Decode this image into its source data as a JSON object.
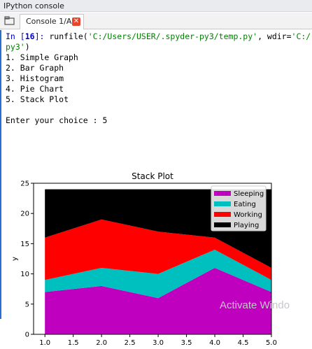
{
  "window": {
    "title": "IPython console"
  },
  "tabs": [
    {
      "label": "Console 1/A",
      "close_icon": "close-icon"
    }
  ],
  "console": {
    "prompt_prefix": "In [",
    "prompt_number": "16",
    "prompt_suffix": "]: ",
    "command_func": "runfile(",
    "command_path": "'C:/Users/USER/.spyder-py3/temp.py'",
    "command_mid": ", wdir=",
    "command_wdir_start": "'C:/",
    "command_wdir_end": "py3'",
    "command_close": ")",
    "menu": [
      "1. Simple Graph",
      "2. Bar Graph",
      "3. Histogram",
      "4. Pie Chart",
      "5. Stack Plot"
    ],
    "choice_prompt": "Enter your choice : 5"
  },
  "chart_data": {
    "type": "area",
    "title": "Stack Plot",
    "xlabel": "",
    "ylabel": "y",
    "x": [
      1,
      2,
      3,
      4,
      5
    ],
    "series": [
      {
        "name": "Sleeping",
        "values": [
          7,
          8,
          6,
          11,
          7
        ],
        "color": "#bf00bf"
      },
      {
        "name": "Eating",
        "values": [
          2,
          3,
          4,
          3,
          2
        ],
        "color": "#00bfbf"
      },
      {
        "name": "Working",
        "values": [
          7,
          8,
          7,
          2,
          2
        ],
        "color": "#ff0000"
      },
      {
        "name": "Playing",
        "values": [
          8,
          5,
          7,
          8,
          13
        ],
        "color": "#000000"
      }
    ],
    "xlim": [
      0.8,
      5.0
    ],
    "ylim": [
      0,
      25
    ],
    "xticks": [
      "1.0",
      "1.5",
      "2.0",
      "2.5",
      "3.0",
      "3.5",
      "4.0",
      "4.5",
      "5.0"
    ],
    "yticks": [
      "0",
      "5",
      "10",
      "15",
      "20",
      "25"
    ],
    "legend_position": "top-right",
    "grid": false
  },
  "watermark": {
    "text": "Activate Windo"
  }
}
